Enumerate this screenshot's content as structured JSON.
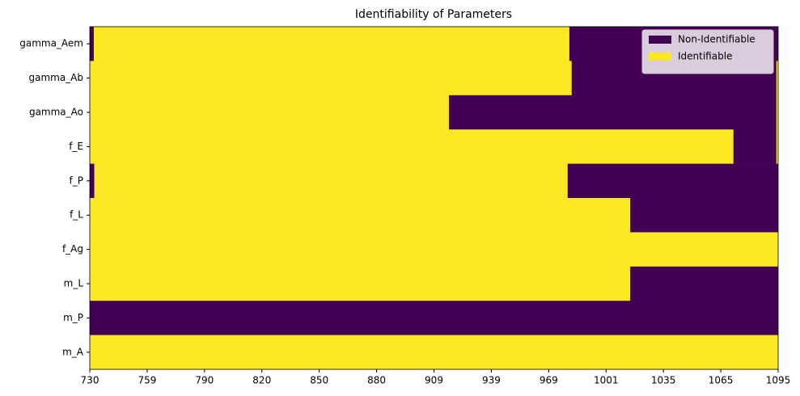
{
  "chart_data": {
    "type": "heatmap",
    "title": "Identifiability of Parameters",
    "series": [
      {
        "name": "Non-Identifiable",
        "color": "#440154"
      },
      {
        "name": "Identifiable",
        "color": "#fde725"
      }
    ],
    "legend": "upper right",
    "xlim": [
      0,
      12
    ],
    "xticks": [
      {
        "value": 0,
        "label": "730"
      },
      {
        "value": 1,
        "label": "759"
      },
      {
        "value": 2,
        "label": "790"
      },
      {
        "value": 3,
        "label": "820"
      },
      {
        "value": 4,
        "label": "850"
      },
      {
        "value": 5,
        "label": "880"
      },
      {
        "value": 6,
        "label": "909"
      },
      {
        "value": 7,
        "label": "939"
      },
      {
        "value": 8,
        "label": "969"
      },
      {
        "value": 9,
        "label": "1001"
      },
      {
        "value": 10,
        "label": "1035"
      },
      {
        "value": 11,
        "label": "1065"
      },
      {
        "value": 12,
        "label": "1095"
      }
    ],
    "rows": [
      {
        "name": "gamma_Aem",
        "segments": [
          [
            0,
            0.07,
            0
          ],
          [
            0.07,
            8.36,
            1
          ],
          [
            8.36,
            12,
            0
          ]
        ]
      },
      {
        "name": "gamma_Ab",
        "segments": [
          [
            0,
            8.4,
            1
          ],
          [
            8.4,
            11.97,
            0
          ],
          [
            11.97,
            12,
            1
          ]
        ]
      },
      {
        "name": "gamma_Ao",
        "segments": [
          [
            0,
            6.26,
            1
          ],
          [
            6.26,
            11.97,
            0
          ],
          [
            11.97,
            12,
            1
          ]
        ]
      },
      {
        "name": "f_E",
        "segments": [
          [
            0,
            11.22,
            1
          ],
          [
            11.22,
            11.97,
            0
          ],
          [
            11.97,
            12,
            1
          ]
        ]
      },
      {
        "name": "f_P",
        "segments": [
          [
            0,
            0.08,
            0
          ],
          [
            0.08,
            8.33,
            1
          ],
          [
            8.33,
            12,
            0
          ]
        ]
      },
      {
        "name": "f_L",
        "segments": [
          [
            0,
            9.42,
            1
          ],
          [
            9.42,
            12,
            0
          ]
        ]
      },
      {
        "name": "f_Ag",
        "segments": [
          [
            0,
            12,
            1
          ]
        ]
      },
      {
        "name": "m_L",
        "segments": [
          [
            0,
            9.42,
            1
          ],
          [
            9.42,
            12,
            0
          ]
        ]
      },
      {
        "name": "m_P",
        "segments": [
          [
            0,
            12,
            0
          ]
        ]
      },
      {
        "name": "m_A",
        "segments": [
          [
            0,
            12,
            1
          ]
        ]
      }
    ]
  }
}
